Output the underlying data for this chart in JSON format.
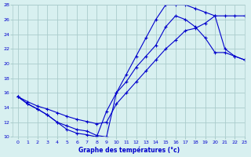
{
  "xlabel": "Graphe des températures (°c)",
  "background_color": "#d8f0f0",
  "line_color": "#0000cc",
  "grid_color": "#aacccc",
  "xlim": [
    -0.5,
    23
  ],
  "ylim": [
    10,
    28
  ],
  "xticks": [
    0,
    1,
    2,
    3,
    4,
    5,
    6,
    7,
    8,
    9,
    10,
    11,
    12,
    13,
    14,
    15,
    16,
    17,
    18,
    19,
    20,
    21,
    22,
    23
  ],
  "yticks": [
    10,
    12,
    14,
    16,
    18,
    20,
    22,
    24,
    26,
    28
  ],
  "series1_x": [
    0,
    1,
    2,
    3,
    4,
    5,
    6,
    7,
    8,
    9,
    10,
    11,
    12,
    13,
    14,
    15,
    16,
    17,
    18,
    19,
    20,
    21,
    22,
    23
  ],
  "series1_y": [
    15.5,
    14.5,
    13.8,
    13.0,
    12.0,
    11.0,
    10.5,
    10.3,
    10.0,
    13.5,
    16.0,
    17.5,
    19.5,
    21.0,
    22.5,
    25.0,
    26.5,
    26.0,
    25.0,
    23.5,
    21.5,
    21.5,
    21.0,
    20.5
  ],
  "series2_x": [
    0,
    1,
    2,
    3,
    4,
    5,
    6,
    7,
    8,
    9,
    10,
    11,
    12,
    13,
    14,
    15,
    16,
    17,
    18,
    19,
    20,
    21,
    22,
    23
  ],
  "series2_y": [
    15.5,
    14.8,
    14.2,
    13.8,
    13.3,
    12.8,
    12.4,
    12.1,
    11.8,
    12.0,
    14.5,
    16.0,
    17.5,
    19.0,
    20.5,
    22.0,
    23.2,
    24.5,
    24.8,
    25.5,
    26.5,
    26.5,
    26.5,
    26.5
  ],
  "series3_x": [
    0,
    1,
    2,
    3,
    4,
    5,
    6,
    7,
    8,
    9,
    10,
    11,
    12,
    13,
    14,
    15,
    16,
    17,
    18,
    19,
    20,
    21,
    22,
    23
  ],
  "series3_y": [
    15.5,
    14.5,
    13.8,
    13.0,
    12.0,
    11.5,
    11.0,
    10.8,
    10.2,
    10.0,
    16.0,
    18.5,
    21.0,
    23.5,
    26.0,
    28.0,
    28.0,
    28.0,
    27.5,
    27.0,
    26.5,
    22.0,
    21.0,
    20.5
  ]
}
